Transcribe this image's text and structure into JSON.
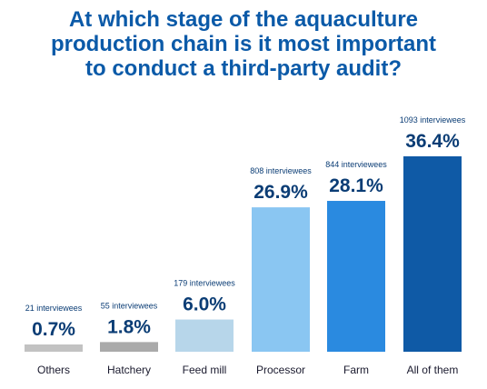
{
  "title_lines": [
    "At which stage of the aquaculture",
    "production chain is it most important",
    "to conduct a third-party audit?"
  ],
  "chart_data": {
    "type": "bar",
    "title": "At which stage of the aquaculture production chain is it most important to conduct a third-party audit?",
    "categories": [
      "Others",
      "Hatchery",
      "Feed mill",
      "Processor",
      "Farm",
      "All of them"
    ],
    "values": [
      0.7,
      1.8,
      6.0,
      26.9,
      28.1,
      36.4
    ],
    "value_labels": [
      "0.7%",
      "1.8%",
      "6.0%",
      "26.9%",
      "28.1%",
      "36.4%"
    ],
    "count_labels": [
      "21 interviewees",
      "55 interviewees",
      "179 interviewees",
      "808 interviewees",
      "844 interviewees",
      "1093 interviewees"
    ],
    "colors": [
      "#c2c2c2",
      "#aaaaaa",
      "#b7d6ea",
      "#8ac6f2",
      "#2a8ae0",
      "#0f5aa6"
    ],
    "label_color": "#0b3d75",
    "ylim": [
      0,
      36.4
    ],
    "grid": false,
    "legend": "none"
  }
}
